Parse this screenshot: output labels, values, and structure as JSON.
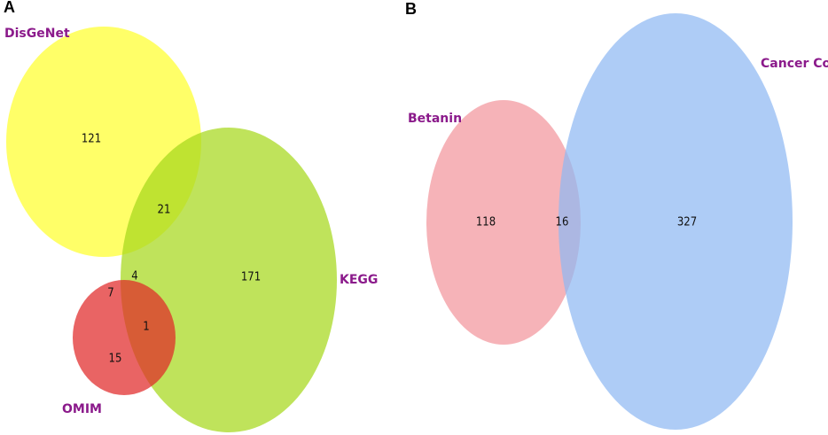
{
  "chart_data": [
    {
      "type": "venn",
      "label": "A",
      "sets": [
        {
          "name": "DisGeNet",
          "color": "#ffff2e"
        },
        {
          "name": "KEGG",
          "color": "#a6d81c"
        },
        {
          "name": "OMIM",
          "color": "#e02828"
        }
      ],
      "regions": [
        {
          "value": 121
        },
        {
          "value": 21
        },
        {
          "value": 171
        },
        {
          "value": 4
        },
        {
          "value": 7
        },
        {
          "value": 1
        },
        {
          "value": 15
        }
      ]
    },
    {
      "type": "venn",
      "label": "B",
      "sets": [
        {
          "name": "Betanin",
          "color": "#f2969c"
        },
        {
          "name": "Cancer Colon",
          "color": "#8fb8f2"
        }
      ],
      "regions": [
        {
          "value": 118
        },
        {
          "value": 16
        },
        {
          "value": 327
        }
      ]
    }
  ]
}
